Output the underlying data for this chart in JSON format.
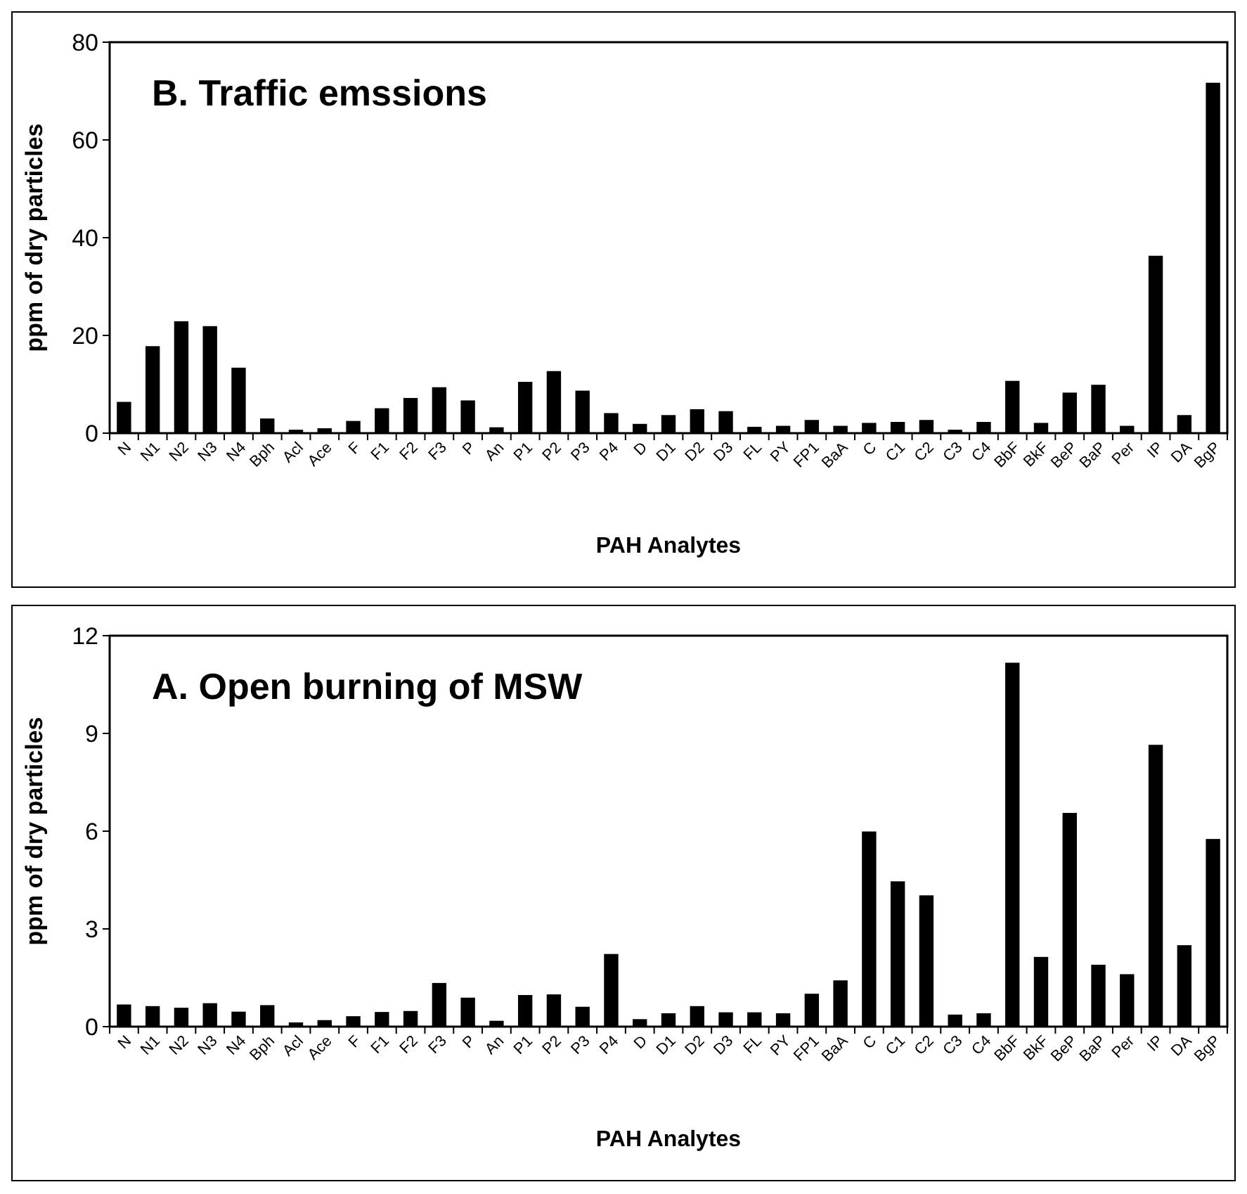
{
  "chart_data": [
    {
      "type": "bar",
      "title": "B. Traffic emssions",
      "xlabel": "PAH Analytes",
      "ylabel": "ppm of dry particles",
      "color": "#000000",
      "ylim": [
        0,
        80
      ],
      "yticks": [
        0,
        20,
        40,
        60,
        80
      ],
      "categories": [
        "N",
        "N1",
        "N2",
        "N3",
        "N4",
        "Bph",
        "Acl",
        "Ace",
        "F",
        "F1",
        "F2",
        "F3",
        "P",
        "An",
        "P1",
        "P2",
        "P3",
        "P4",
        "D",
        "D1",
        "D2",
        "D3",
        "FL",
        "PY",
        "FP1",
        "BaA",
        "C",
        "C1",
        "C2",
        "C3",
        "C4",
        "BbF",
        "BkF",
        "BeP",
        "BaP",
        "Per",
        "IP",
        "DA",
        "BgP"
      ],
      "values": [
        6.4,
        17.8,
        22.9,
        21.9,
        13.4,
        3,
        0.7,
        1,
        2.5,
        5.1,
        7.2,
        9.4,
        6.7,
        1.2,
        10.5,
        12.7,
        8.7,
        4.1,
        1.9,
        3.7,
        4.9,
        4.5,
        1.3,
        1.5,
        2.7,
        1.5,
        2.1,
        2.3,
        2.7,
        0.7,
        2.3,
        10.7,
        2.1,
        8.3,
        9.9,
        1.5,
        36.3,
        3.7,
        71.7
      ]
    },
    {
      "type": "bar",
      "title": "A. Open burning of MSW",
      "xlabel": "PAH Analytes",
      "ylabel": "ppm of dry particles",
      "color": "#000000",
      "ylim": [
        0,
        12
      ],
      "yticks": [
        0,
        3,
        6,
        9,
        12
      ],
      "categories": [
        "N",
        "N1",
        "N2",
        "N3",
        "N4",
        "Bph",
        "Acl",
        "Ace",
        "F",
        "F1",
        "F2",
        "F3",
        "P",
        "An",
        "P1",
        "P2",
        "P3",
        "P4",
        "D",
        "D1",
        "D2",
        "D3",
        "FL",
        "PY",
        "FP1",
        "BaA",
        "C",
        "C1",
        "C2",
        "C3",
        "C4",
        "BbF",
        "BkF",
        "BeP",
        "BaP",
        "Per",
        "IP",
        "DA",
        "BgP"
      ],
      "values": [
        0.68,
        0.63,
        0.58,
        0.72,
        0.46,
        0.66,
        0.13,
        0.2,
        0.32,
        0.45,
        0.48,
        1.34,
        0.89,
        0.18,
        0.97,
        0.99,
        0.61,
        2.23,
        0.23,
        0.41,
        0.63,
        0.44,
        0.44,
        0.41,
        1.01,
        1.42,
        5.99,
        4.46,
        4.03,
        0.37,
        0.41,
        11.17,
        2.14,
        6.56,
        1.9,
        1.61,
        8.65,
        2.5,
        5.76
      ]
    }
  ]
}
